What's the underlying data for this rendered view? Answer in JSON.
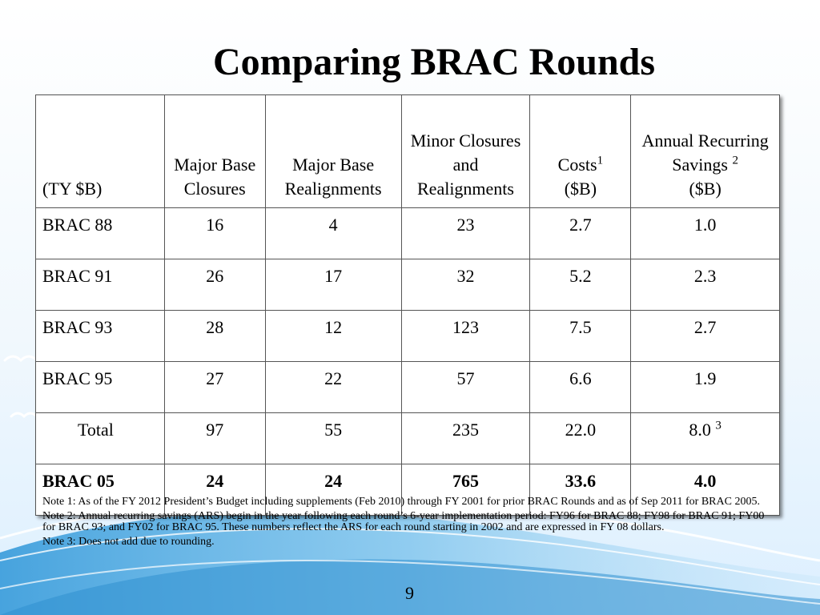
{
  "slide": {
    "title": "Comparing BRAC Rounds",
    "page_number": "9"
  },
  "table": {
    "headers": [
      {
        "text": "(TY $B)"
      },
      {
        "text": "Major Base Closures"
      },
      {
        "text": "Major Base Realignments"
      },
      {
        "text": "Minor Closures and Realignments"
      },
      {
        "text": "Costs",
        "sup": "1",
        "after": "($B)"
      },
      {
        "text": "Annual Recurring Savings",
        "sup": "2",
        "after": "($B)"
      }
    ],
    "rows": [
      {
        "label": "BRAC 88",
        "cells": [
          "16",
          "4",
          "23",
          "2.7",
          "1.0"
        ],
        "last_sup": ""
      },
      {
        "label": "BRAC 91",
        "cells": [
          "26",
          "17",
          "32",
          "5.2",
          "2.3"
        ],
        "last_sup": ""
      },
      {
        "label": "BRAC 93",
        "cells": [
          "28",
          "12",
          "123",
          "7.5",
          "2.7"
        ],
        "last_sup": ""
      },
      {
        "label": "BRAC 95",
        "cells": [
          "27",
          "22",
          "57",
          "6.6",
          "1.9"
        ],
        "last_sup": ""
      },
      {
        "label": "Total",
        "cells": [
          "97",
          "55",
          "235",
          "22.0",
          "8.0"
        ],
        "last_sup": "3"
      },
      {
        "label": "BRAC 05",
        "cells": [
          "24",
          "24",
          "765",
          "33.6",
          "4.0"
        ],
        "last_sup": ""
      }
    ]
  },
  "notes": [
    "Note 1: As of the FY 2012 President’s Budget including supplements (Feb 2010) through FY 2001 for prior BRAC Rounds and as of Sep 2011 for BRAC 2005.",
    "Note 2: Annual recurring savings (ARS) begin in the year following each round’s 6-year implementation period: FY96 for BRAC 88; FY98 for BRAC 91; FY00 for BRAC 93; and FY02 for BRAC 95.  These numbers reflect the ARS for each round starting in 2002 and are expressed in FY 08 dollars.",
    "Note 3: Does not add due to rounding."
  ],
  "colors": {
    "background_top": "#ffffff",
    "background_bottom": "#dcefff",
    "swoosh": "#5aaee0",
    "border": "#555555"
  }
}
